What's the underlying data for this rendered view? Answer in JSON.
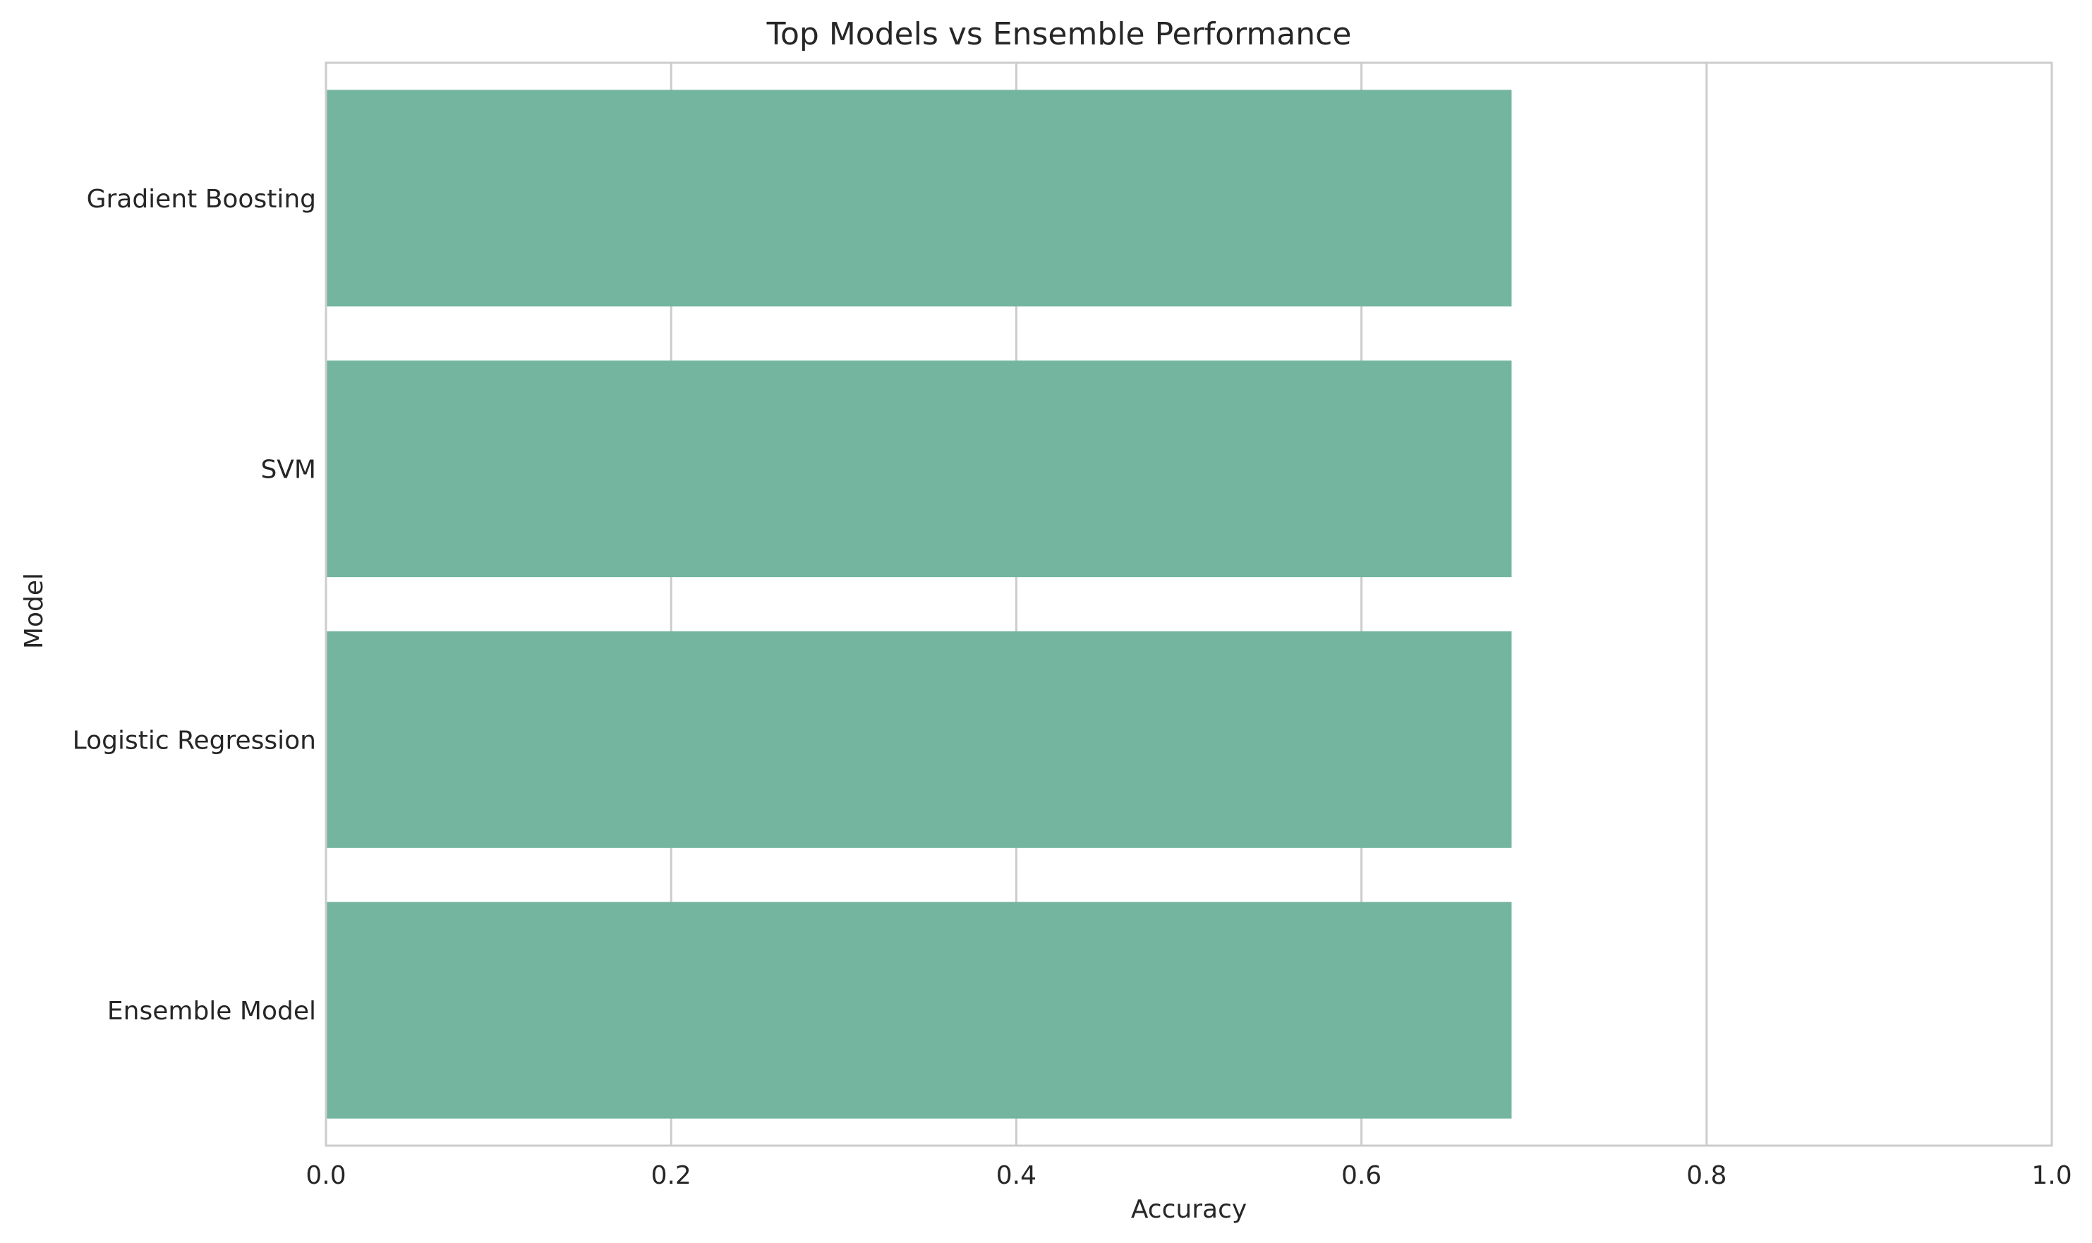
{
  "chart_data": {
    "type": "bar",
    "orientation": "horizontal",
    "title": "Top Models vs Ensemble Performance",
    "xlabel": "Accuracy",
    "ylabel": "Model",
    "categories": [
      "Gradient Boosting",
      "SVM",
      "Logistic Regression",
      "Ensemble Model"
    ],
    "values": [
      0.687,
      0.687,
      0.687,
      0.687
    ],
    "xlim": [
      0.0,
      1.0
    ],
    "xticks": [
      "0.0",
      "0.2",
      "0.4",
      "0.6",
      "0.8",
      "1.0"
    ],
    "grid": "vertical",
    "legend": "none",
    "bar_color": "#74b59f"
  }
}
